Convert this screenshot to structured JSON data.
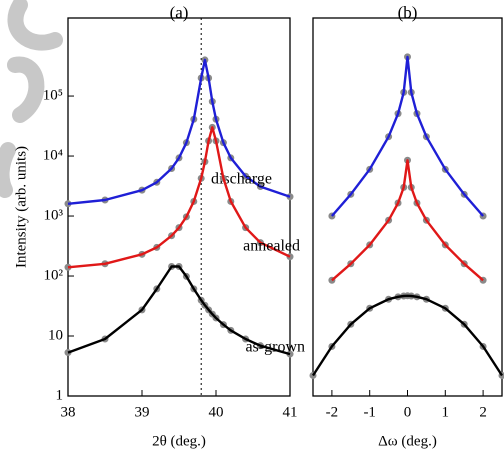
{
  "chart_data": [
    {
      "type": "line",
      "title": "(a)",
      "x_label": "2θ (deg.)",
      "y_label": "Intensity (arb. units)",
      "log_y": true,
      "xlim": [
        38,
        41
      ],
      "xticks": [
        38,
        39,
        40,
        41
      ],
      "ylim": [
        1,
        2000000
      ],
      "yticks": [
        1,
        10,
        {
          "value": 100,
          "label": "10²"
        },
        {
          "value": 1000,
          "label": "10³"
        },
        {
          "value": 10000,
          "label": "10⁴"
        },
        {
          "value": 100000,
          "label": "10⁵"
        }
      ],
      "vline": 39.8,
      "marker_color": "#8a8a8a",
      "x": [
        38,
        38.5,
        39,
        39.2,
        39.4,
        39.5,
        39.6,
        39.7,
        39.8,
        39.85,
        39.9,
        39.95,
        40,
        40.1,
        40.2,
        40.4,
        40.6,
        41
      ],
      "series": [
        {
          "name": "discharge",
          "color": "#1f1fd6",
          "values": [
            1600,
            1850,
            2700,
            3650,
            6200,
            9300,
            16700,
            41000,
            200000,
            400000,
            200000,
            81000,
            41000,
            16700,
            9300,
            4600,
            3100,
            2100
          ]
        },
        {
          "name": "annealed",
          "color": "#e01818",
          "values": [
            140,
            160,
            230,
            300,
            470,
            640,
            970,
            1750,
            4250,
            8050,
            17900,
            30100,
            17900,
            4250,
            1750,
            640,
            360,
            210
          ]
        },
        {
          "name": "as-grown",
          "color": "#000000",
          "values": [
            5.3,
            8.9,
            27.3,
            61,
            144,
            144,
            98.5,
            61,
            39.5,
            32.5,
            27.3,
            23.2,
            20,
            15.5,
            12.4,
            8.9,
            6.9,
            5
          ]
        }
      ]
    },
    {
      "type": "line",
      "title": "(b)",
      "x_label": "Δω (deg.)",
      "log_y": true,
      "xlim": [
        -2.5,
        2.5
      ],
      "xticks": [
        -2,
        -1,
        0,
        1,
        2
      ],
      "ylim": [
        1,
        2000000
      ],
      "marker_color": "#8a8a8a",
      "x": [
        -2.5,
        -2,
        -1.5,
        -1,
        -0.5,
        -0.25,
        -0.1,
        0,
        0.1,
        0.25,
        0.5,
        1,
        1.5,
        2,
        2.5
      ],
      "series": [
        {
          "name": "discharge",
          "color": "#1f1fd6",
          "values": [
            null,
            1000,
            2300,
            6000,
            21000,
            51000,
            115000,
            450000,
            115000,
            51000,
            21000,
            6000,
            2300,
            1000,
            null
          ]
        },
        {
          "name": "annealed",
          "color": "#e01818",
          "values": [
            null,
            85,
            160,
            330,
            850,
            1650,
            3000,
            8500,
            3000,
            1650,
            850,
            330,
            160,
            85,
            null
          ]
        },
        {
          "name": "as-grown",
          "color": "#000000",
          "values": [
            2.2,
            6.7,
            15.7,
            29,
            41,
            45,
            46.5,
            46.8,
            46.5,
            45,
            41,
            29,
            15.7,
            6.7,
            2.2
          ]
        }
      ]
    }
  ]
}
